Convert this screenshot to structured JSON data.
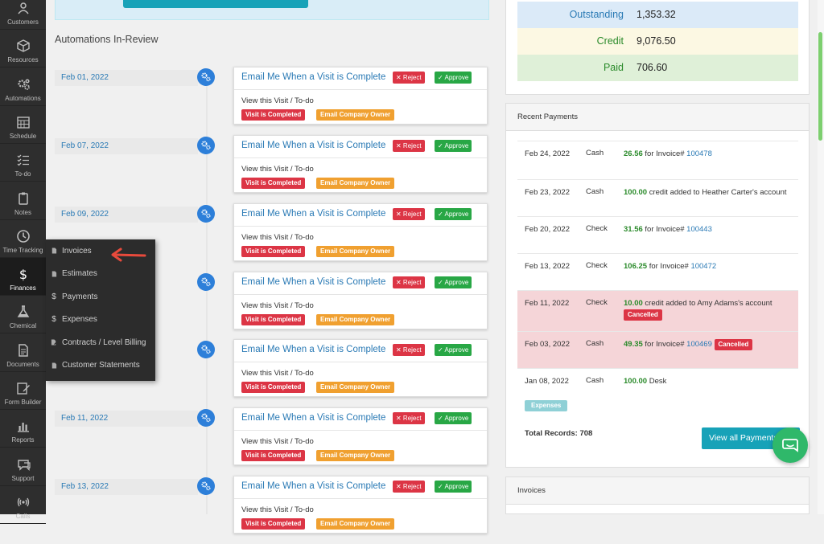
{
  "sidebar": {
    "items": [
      {
        "label": "Customers",
        "icon": "users-icon"
      },
      {
        "label": "Resources",
        "icon": "cube-icon"
      },
      {
        "label": "Automations",
        "icon": "gears-icon"
      },
      {
        "label": "Schedule",
        "icon": "calendar-icon"
      },
      {
        "label": "To-do",
        "icon": "checklist-icon"
      },
      {
        "label": "Notes",
        "icon": "clipboard-icon"
      },
      {
        "label": "Time Tracking",
        "icon": "clock-icon"
      },
      {
        "label": "Finances",
        "icon": "dollar-icon"
      },
      {
        "label": "Chemical",
        "icon": "flask-icon"
      },
      {
        "label": "Documents",
        "icon": "document-icon"
      },
      {
        "label": "Form Builder",
        "icon": "form-edit-icon"
      },
      {
        "label": "Reports",
        "icon": "bar-chart-icon"
      },
      {
        "label": "Support",
        "icon": "chat-bubble-icon"
      },
      {
        "label": "Calls",
        "icon": "phone-signal-icon"
      }
    ],
    "active": "Finances"
  },
  "flyout": {
    "items": [
      {
        "label": "Invoices",
        "icon": "file-icon"
      },
      {
        "label": "Estimates",
        "icon": "file-icon"
      },
      {
        "label": "Payments",
        "icon": "dollar-icon"
      },
      {
        "label": "Expenses",
        "icon": "dollar-icon"
      },
      {
        "label": "Contracts / Level Billing",
        "icon": "file-edit-icon"
      },
      {
        "label": "Customer Statements",
        "icon": "file-icon"
      }
    ]
  },
  "main": {
    "section_title": "Automations In-Review",
    "automations": [
      {
        "date": "Feb 01, 2022",
        "title": "Email Me When a Visit is Complete",
        "reject": "✕ Reject",
        "approve": "✓ Approve",
        "link": "View this Visit / To-do",
        "trigger": "Visit is Completed",
        "action": "Email Company Owner"
      },
      {
        "date": "Feb 07, 2022",
        "title": "Email Me When a Visit is Complete",
        "reject": "✕ Reject",
        "approve": "✓ Approve",
        "link": "View this Visit / To-do",
        "trigger": "Visit is Completed",
        "action": "Email Company Owner"
      },
      {
        "date": "Feb 09, 2022",
        "title": "Email Me When a Visit is Complete",
        "reject": "✕ Reject",
        "approve": "✓ Approve",
        "link": "View this Visit / To-do",
        "trigger": "Visit is Completed",
        "action": "Email Company Owner"
      },
      {
        "date": "",
        "title": "Email Me When a Visit is Complete",
        "reject": "✕ Reject",
        "approve": "✓ Approve",
        "link": "View this Visit / To-do",
        "trigger": "Visit is Completed",
        "action": "Email Company Owner"
      },
      {
        "date": "",
        "title": "Email Me When a Visit is Complete",
        "reject": "✕ Reject",
        "approve": "✓ Approve",
        "link": "View this Visit / To-do",
        "trigger": "Visit is Completed",
        "action": "Email Company Owner"
      },
      {
        "date": "Feb 11, 2022",
        "title": "Email Me When a Visit is Complete",
        "reject": "✕ Reject",
        "approve": "✓ Approve",
        "link": "View this Visit / To-do",
        "trigger": "Visit is Completed",
        "action": "Email Company Owner"
      },
      {
        "date": "Feb 13, 2022",
        "title": "Email Me When a Visit is Complete",
        "reject": "✕ Reject",
        "approve": "✓ Approve",
        "link": "View this Visit / To-do",
        "trigger": "Visit is Completed",
        "action": "Email Company Owner"
      }
    ]
  },
  "summary": {
    "rows": [
      {
        "label": "Outstanding",
        "value": "1,353.32",
        "bg": "#dbeaf8",
        "label_color": "#2a7ab5"
      },
      {
        "label": "Credit",
        "value": "9,076.50",
        "bg": "#fcf8e3",
        "label_color": "#2a8a2a"
      },
      {
        "label": "Paid",
        "value": "706.60",
        "bg": "#dff0d8",
        "label_color": "#2a8a2a"
      }
    ]
  },
  "recent_payments": {
    "title": "Recent Payments",
    "rows": [
      {
        "date": "Feb 24, 2022",
        "method": "Cash",
        "amount": "26.56",
        "text": " for Invoice# ",
        "invoice": "100478"
      },
      {
        "date": "Feb 23, 2022",
        "method": "Cash",
        "amount": "100.00",
        "text": " credit added to Heather Carter's account",
        "invoice": ""
      },
      {
        "date": "Feb 20, 2022",
        "method": "Check",
        "amount": "31.56",
        "text": " for Invoice# ",
        "invoice": "100443"
      },
      {
        "date": "Feb 13, 2022",
        "method": "Check",
        "amount": "106.25",
        "text": " for Invoice# ",
        "invoice": "100472"
      },
      {
        "date": "Feb 11, 2022",
        "method": "Check",
        "amount": "10.00",
        "text": " credit added to Amy Adams's account",
        "invoice": "",
        "badge": "Cancelled"
      },
      {
        "date": "Feb 03, 2022",
        "method": "Cash",
        "amount": "49.35",
        "text": " for Invoice# ",
        "invoice": "100469",
        "badge": "Cancelled"
      },
      {
        "date": "Jan 08, 2022",
        "method": "Cash",
        "amount": "100.00",
        "text": " Desk",
        "invoice": "",
        "tag": "Expenses"
      }
    ],
    "total": "Total Records: 708",
    "view_all": "View all Payments"
  },
  "invoices_panel": {
    "title": "Invoices"
  }
}
